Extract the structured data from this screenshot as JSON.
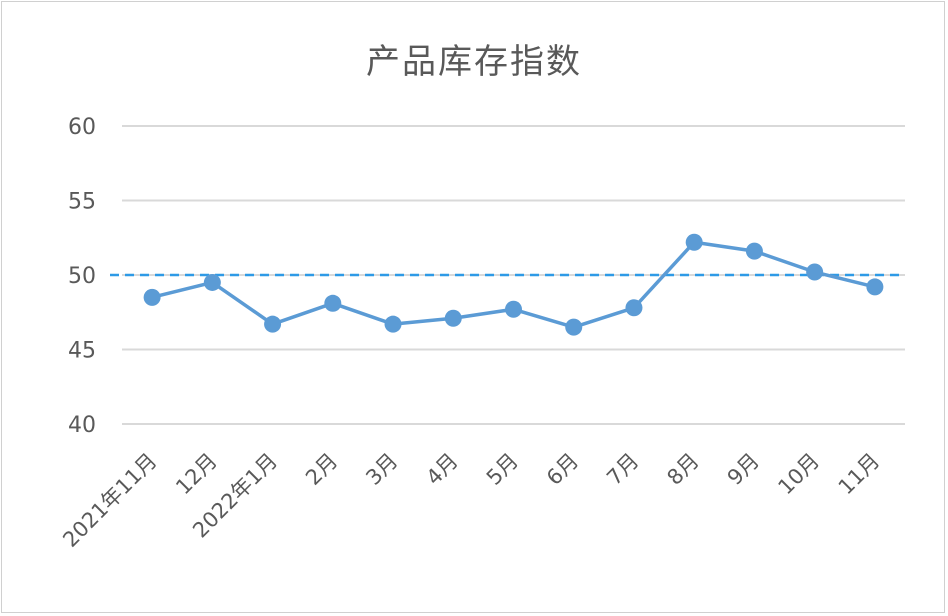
{
  "chart_data": {
    "type": "line",
    "title": "产品库存指数",
    "categories": [
      "2021年11月",
      "12月",
      "2022年1月",
      "2月",
      "3月",
      "4月",
      "5月",
      "6月",
      "7月",
      "8月",
      "9月",
      "10月",
      "11月"
    ],
    "series": [
      {
        "values": [
          48.5,
          49.5,
          46.7,
          48.1,
          46.7,
          47.1,
          47.7,
          46.5,
          47.8,
          52.2,
          51.6,
          50.2,
          49.2
        ]
      }
    ],
    "ylim": [
      40,
      60
    ],
    "yticks": [
      40,
      45,
      50,
      55,
      60
    ],
    "reference_line": {
      "value": 50,
      "style": "dashed"
    },
    "grid": true,
    "colors": {
      "line": "#5b9bd5",
      "reference": "#2e9ae6",
      "grid": "#d9d9d9"
    }
  }
}
